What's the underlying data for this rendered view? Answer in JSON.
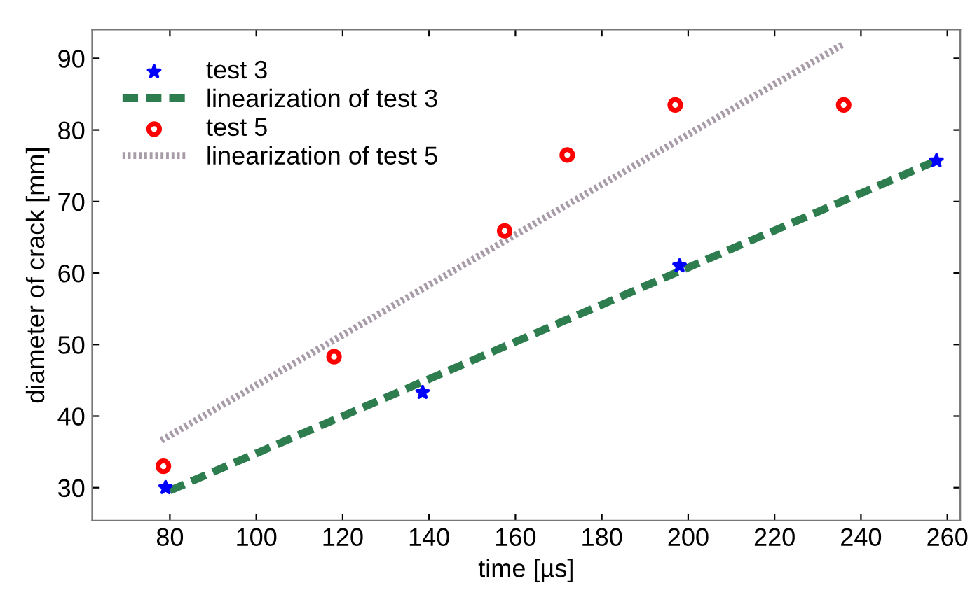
{
  "chart_data": {
    "type": "scatter",
    "xlabel": "time [µs]",
    "ylabel": "diameter of crack [mm]",
    "xlim": [
      62,
      263
    ],
    "ylim": [
      25.4,
      94
    ],
    "xticks": [
      80,
      100,
      120,
      140,
      160,
      180,
      200,
      220,
      240,
      260
    ],
    "yticks": [
      30,
      40,
      50,
      60,
      70,
      80,
      90
    ],
    "grid": false,
    "legend": "top left",
    "series": [
      {
        "name": "test 3",
        "marker": "star",
        "color": "#0000ff",
        "x": [
          79,
          138.5,
          198,
          257.5
        ],
        "values": [
          30,
          43.3,
          61.0,
          75.7
        ]
      },
      {
        "name": "linearization of test 3",
        "type": "line",
        "line_style": "dashed",
        "marker": "none",
        "color": "#2e7d4f",
        "x": [
          80,
          257.5
        ],
        "values": [
          29.6,
          75.7
        ]
      },
      {
        "name": "test 5",
        "marker": "circle",
        "color": "#ff0000",
        "x": [
          78.5,
          118,
          157.5,
          172,
          197,
          236
        ],
        "values": [
          33.0,
          48.3,
          65.9,
          76.5,
          83.5,
          83.5
        ]
      },
      {
        "name": "linearization of test 5",
        "type": "line",
        "line_style": "dotted",
        "marker": "none",
        "color": "#a89ca8",
        "x": [
          78,
          236
        ],
        "values": [
          36.6,
          92.0
        ]
      }
    ]
  }
}
